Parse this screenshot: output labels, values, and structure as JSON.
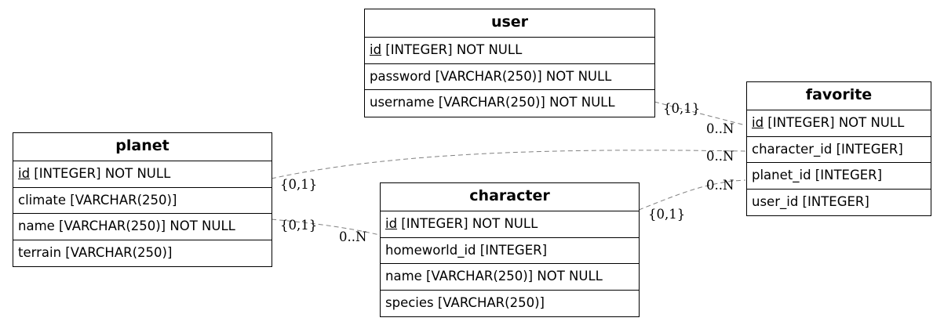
{
  "entities": {
    "user": {
      "name": "user",
      "rows": [
        {
          "pk": "id",
          "rest": " [INTEGER] NOT NULL"
        },
        {
          "pk": "",
          "rest": "password [VARCHAR(250)] NOT NULL"
        },
        {
          "pk": "",
          "rest": "username [VARCHAR(250)] NOT NULL"
        }
      ]
    },
    "favorite": {
      "name": "favorite",
      "rows": [
        {
          "pk": "id",
          "rest": " [INTEGER] NOT NULL"
        },
        {
          "pk": "",
          "rest": "character_id [INTEGER]"
        },
        {
          "pk": "",
          "rest": "planet_id [INTEGER]"
        },
        {
          "pk": "",
          "rest": "user_id [INTEGER]"
        }
      ]
    },
    "planet": {
      "name": "planet",
      "rows": [
        {
          "pk": "id",
          "rest": " [INTEGER] NOT NULL"
        },
        {
          "pk": "",
          "rest": "climate [VARCHAR(250)]"
        },
        {
          "pk": "",
          "rest": "name [VARCHAR(250)] NOT NULL"
        },
        {
          "pk": "",
          "rest": "terrain [VARCHAR(250)]"
        }
      ]
    },
    "character": {
      "name": "character",
      "rows": [
        {
          "pk": "id",
          "rest": " [INTEGER] NOT NULL"
        },
        {
          "pk": "",
          "rest": "homeworld_id [INTEGER]"
        },
        {
          "pk": "",
          "rest": "name [VARCHAR(250)] NOT NULL"
        },
        {
          "pk": "",
          "rest": "species [VARCHAR(250)]"
        }
      ]
    }
  },
  "cardinalities": {
    "user_one": "{0,1}",
    "user_many": "0..N",
    "planet_fav_one": "{0,1}",
    "planet_fav_many": "0..N",
    "char_fav_many": "0..N",
    "char_fav_one": "{0,1}",
    "planet_char_one": "{0,1}",
    "planet_char_many": "0..N"
  },
  "colors": {
    "edge": "#808080",
    "border": "#000000"
  }
}
